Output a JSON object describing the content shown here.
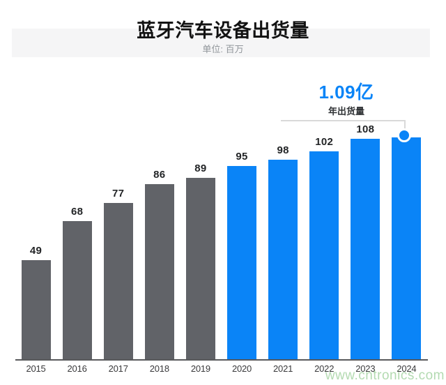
{
  "header": {
    "title": "蓝牙汽车设备出货量",
    "subtitle": "单位: 百万"
  },
  "annotation": {
    "value": "1.09亿",
    "label": "年出货量"
  },
  "watermark": {
    "text": "www.cntronics.com"
  },
  "colors": {
    "past_bar": "#616368",
    "recent_bar": "#0a84f7",
    "accent_blue": "#0a84f7",
    "annotation_text": "#0a84f7",
    "connector": "#d9d9d9",
    "axis": "#58595c",
    "watermark_green": "#a6d4a4"
  },
  "chart_data": {
    "type": "bar",
    "title": "蓝牙汽车设备出货量",
    "unit": "百万",
    "categories": [
      "2015",
      "2016",
      "2017",
      "2018",
      "2019",
      "2020",
      "2021",
      "2022",
      "2023",
      "2024"
    ],
    "values": [
      49,
      68,
      77,
      86,
      89,
      95,
      98,
      102,
      108,
      109
    ],
    "value_labels": [
      "49",
      "68",
      "77",
      "86",
      "89",
      "95",
      "98",
      "102",
      "108",
      ""
    ],
    "bar_colors": [
      "#616368",
      "#616368",
      "#616368",
      "#616368",
      "#616368",
      "#0a84f7",
      "#0a84f7",
      "#0a84f7",
      "#0a84f7",
      "#0a84f7"
    ],
    "xlabel": "",
    "ylabel": "",
    "ylim": [
      0,
      115
    ],
    "grid": false,
    "legend": false,
    "highlight": {
      "category": "2024",
      "annotation_value": "1.09亿",
      "annotation_label": "年出货量",
      "marker": "circle-on-bar-top"
    }
  }
}
